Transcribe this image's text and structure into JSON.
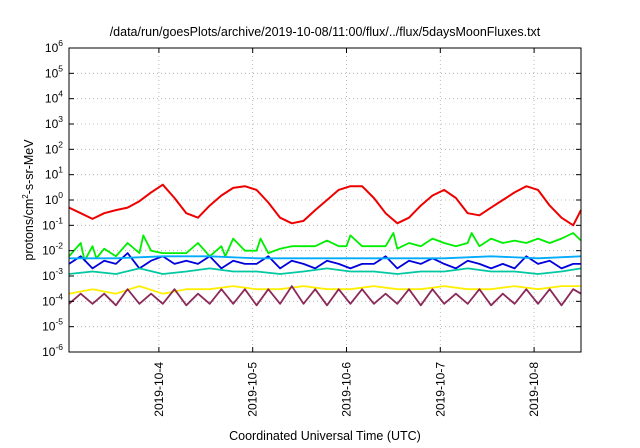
{
  "chart_data": {
    "type": "line",
    "title": "/data/run/goesPlots/archive/2019-10-08/11:00/flux/../flux/5daysMoonFluxes.txt",
    "xlabel": "Coordinated Universal Time (UTC)",
    "ylabel": {
      "prefix": "protons/cm",
      "sup": "2",
      "suffix": "-s-sr-MeV"
    },
    "y_scale": "log",
    "ylim": [
      1e-06,
      1000000.0
    ],
    "y_ticks": [
      {
        "value": 1e-06,
        "base": "10",
        "exp": "-6"
      },
      {
        "value": 1e-05,
        "base": "10",
        "exp": "-5"
      },
      {
        "value": 0.0001,
        "base": "10",
        "exp": "-4"
      },
      {
        "value": 0.001,
        "base": "10",
        "exp": "-3"
      },
      {
        "value": 0.01,
        "base": "10",
        "exp": "-2"
      },
      {
        "value": 0.1,
        "base": "10",
        "exp": "-1"
      },
      {
        "value": 1,
        "base": "10",
        "exp": "0"
      },
      {
        "value": 10,
        "base": "10",
        "exp": "1"
      },
      {
        "value": 100,
        "base": "10",
        "exp": "2"
      },
      {
        "value": 1000,
        "base": "10",
        "exp": "3"
      },
      {
        "value": 10000,
        "base": "10",
        "exp": "4"
      },
      {
        "value": 100000,
        "base": "10",
        "exp": "5"
      },
      {
        "value": 1000000,
        "base": "10",
        "exp": "6"
      }
    ],
    "xlim": [
      "2019-10-03T01:00",
      "2019-10-08T12:00"
    ],
    "x_ticks": [
      "2019-10-4",
      "2019-10-5",
      "2019-10-6",
      "2019-10-7",
      "2019-10-8"
    ],
    "grid": true,
    "legend": "none",
    "series": [
      {
        "color": "#ee0000",
        "x": [
          "2019-10-03T01:00",
          "2019-10-03T04:00",
          "2019-10-03T07:00",
          "2019-10-03T10:00",
          "2019-10-03T13:00",
          "2019-10-03T16:00",
          "2019-10-03T19:00",
          "2019-10-03T22:00",
          "2019-10-04T01:00",
          "2019-10-04T04:00",
          "2019-10-04T07:00",
          "2019-10-04T10:00",
          "2019-10-04T13:00",
          "2019-10-04T16:00",
          "2019-10-04T19:00",
          "2019-10-04T22:00",
          "2019-10-05T01:00",
          "2019-10-05T04:00",
          "2019-10-05T07:00",
          "2019-10-05T10:00",
          "2019-10-05T13:00",
          "2019-10-05T16:00",
          "2019-10-05T19:00",
          "2019-10-05T22:00",
          "2019-10-06T01:00",
          "2019-10-06T04:00",
          "2019-10-06T07:00",
          "2019-10-06T10:00",
          "2019-10-06T13:00",
          "2019-10-06T16:00",
          "2019-10-06T19:00",
          "2019-10-06T22:00",
          "2019-10-07T01:00",
          "2019-10-07T04:00",
          "2019-10-07T07:00",
          "2019-10-07T10:00",
          "2019-10-07T13:00",
          "2019-10-07T16:00",
          "2019-10-07T19:00",
          "2019-10-07T22:00",
          "2019-10-08T01:00",
          "2019-10-08T04:00",
          "2019-10-08T07:00",
          "2019-10-08T10:00",
          "2019-10-08T12:00"
        ],
        "y": [
          0.5,
          0.3,
          0.18,
          0.3,
          0.4,
          0.5,
          0.9,
          2,
          4,
          1.2,
          0.3,
          0.2,
          0.6,
          1.5,
          3,
          3.5,
          2.5,
          0.8,
          0.2,
          0.12,
          0.15,
          0.4,
          1,
          2.5,
          3.5,
          3.5,
          1.2,
          0.3,
          0.12,
          0.2,
          0.6,
          1.5,
          2.5,
          1.2,
          0.3,
          0.25,
          0.5,
          1,
          2,
          3.5,
          2.5,
          0.6,
          0.2,
          0.1,
          0.4
        ]
      },
      {
        "color": "#00ee00",
        "x": [
          "2019-10-03T01:00",
          "2019-10-03T04:00",
          "2019-10-03T05:00",
          "2019-10-03T07:00",
          "2019-10-03T08:00",
          "2019-10-03T10:00",
          "2019-10-03T13:00",
          "2019-10-03T16:00",
          "2019-10-03T19:00",
          "2019-10-03T20:00",
          "2019-10-03T22:00",
          "2019-10-04T01:00",
          "2019-10-04T04:00",
          "2019-10-04T07:00",
          "2019-10-04T10:00",
          "2019-10-04T13:00",
          "2019-10-04T16:00",
          "2019-10-04T17:00",
          "2019-10-04T19:00",
          "2019-10-04T22:00",
          "2019-10-05T01:00",
          "2019-10-05T02:00",
          "2019-10-05T04:00",
          "2019-10-05T07:00",
          "2019-10-05T10:00",
          "2019-10-05T13:00",
          "2019-10-05T16:00",
          "2019-10-05T19:00",
          "2019-10-05T22:00",
          "2019-10-06T00:00",
          "2019-10-06T01:00",
          "2019-10-06T04:00",
          "2019-10-06T07:00",
          "2019-10-06T10:00",
          "2019-10-06T12:00",
          "2019-10-06T13:00",
          "2019-10-06T16:00",
          "2019-10-06T19:00",
          "2019-10-06T22:00",
          "2019-10-07T01:00",
          "2019-10-07T04:00",
          "2019-10-07T07:00",
          "2019-10-07T08:00",
          "2019-10-07T10:00",
          "2019-10-07T13:00",
          "2019-10-07T16:00",
          "2019-10-07T19:00",
          "2019-10-07T22:00",
          "2019-10-08T01:00",
          "2019-10-08T04:00",
          "2019-10-08T07:00",
          "2019-10-08T10:00",
          "2019-10-08T12:00"
        ],
        "y": [
          0.006,
          0.02,
          0.004,
          0.015,
          0.005,
          0.012,
          0.006,
          0.02,
          0.008,
          0.04,
          0.01,
          0.008,
          0.008,
          0.008,
          0.02,
          0.006,
          0.015,
          0.006,
          0.03,
          0.01,
          0.01,
          0.03,
          0.008,
          0.012,
          0.015,
          0.015,
          0.015,
          0.025,
          0.015,
          0.015,
          0.04,
          0.015,
          0.015,
          0.015,
          0.05,
          0.012,
          0.02,
          0.015,
          0.03,
          0.02,
          0.015,
          0.02,
          0.05,
          0.015,
          0.03,
          0.02,
          0.025,
          0.02,
          0.03,
          0.02,
          0.03,
          0.05,
          0.025
        ]
      },
      {
        "color": "#0000dd",
        "x": [
          "2019-10-03T01:00",
          "2019-10-03T04:00",
          "2019-10-03T07:00",
          "2019-10-03T10:00",
          "2019-10-03T13:00",
          "2019-10-03T16:00",
          "2019-10-03T19:00",
          "2019-10-03T22:00",
          "2019-10-04T01:00",
          "2019-10-04T04:00",
          "2019-10-04T07:00",
          "2019-10-04T10:00",
          "2019-10-04T13:00",
          "2019-10-04T16:00",
          "2019-10-04T19:00",
          "2019-10-04T22:00",
          "2019-10-05T01:00",
          "2019-10-05T04:00",
          "2019-10-05T07:00",
          "2019-10-05T10:00",
          "2019-10-05T13:00",
          "2019-10-05T16:00",
          "2019-10-05T19:00",
          "2019-10-05T22:00",
          "2019-10-06T01:00",
          "2019-10-06T04:00",
          "2019-10-06T07:00",
          "2019-10-06T10:00",
          "2019-10-06T13:00",
          "2019-10-06T16:00",
          "2019-10-06T19:00",
          "2019-10-06T22:00",
          "2019-10-07T01:00",
          "2019-10-07T04:00",
          "2019-10-07T07:00",
          "2019-10-07T10:00",
          "2019-10-07T13:00",
          "2019-10-07T16:00",
          "2019-10-07T19:00",
          "2019-10-07T22:00",
          "2019-10-08T01:00",
          "2019-10-08T04:00",
          "2019-10-08T07:00",
          "2019-10-08T10:00",
          "2019-10-08T12:00"
        ],
        "y": [
          0.003,
          0.006,
          0.002,
          0.004,
          0.003,
          0.008,
          0.002,
          0.004,
          0.006,
          0.003,
          0.004,
          0.003,
          0.006,
          0.002,
          0.004,
          0.003,
          0.003,
          0.006,
          0.002,
          0.004,
          0.003,
          0.002,
          0.004,
          0.003,
          0.002,
          0.003,
          0.003,
          0.006,
          0.002,
          0.004,
          0.003,
          0.005,
          0.003,
          0.002,
          0.004,
          0.003,
          0.002,
          0.003,
          0.002,
          0.006,
          0.003,
          0.004,
          0.002,
          0.003,
          0.003
        ]
      },
      {
        "color": "#00aaff",
        "x": [
          "2019-10-03T01:00",
          "2019-10-03T13:00",
          "2019-10-04T01:00",
          "2019-10-04T13:00",
          "2019-10-05T01:00",
          "2019-10-05T13:00",
          "2019-10-06T01:00",
          "2019-10-06T13:00",
          "2019-10-07T01:00",
          "2019-10-07T13:00",
          "2019-10-08T01:00",
          "2019-10-08T12:00"
        ],
        "y": [
          0.005,
          0.005,
          0.006,
          0.006,
          0.005,
          0.005,
          0.005,
          0.005,
          0.005,
          0.006,
          0.005,
          0.006
        ]
      },
      {
        "color": "#00c8a0",
        "x": [
          "2019-10-03T01:00",
          "2019-10-03T07:00",
          "2019-10-03T13:00",
          "2019-10-03T19:00",
          "2019-10-04T01:00",
          "2019-10-04T07:00",
          "2019-10-04T13:00",
          "2019-10-04T19:00",
          "2019-10-05T01:00",
          "2019-10-05T07:00",
          "2019-10-05T13:00",
          "2019-10-05T19:00",
          "2019-10-06T01:00",
          "2019-10-06T07:00",
          "2019-10-06T13:00",
          "2019-10-06T19:00",
          "2019-10-07T01:00",
          "2019-10-07T07:00",
          "2019-10-07T13:00",
          "2019-10-07T19:00",
          "2019-10-08T01:00",
          "2019-10-08T07:00",
          "2019-10-08T12:00"
        ],
        "y": [
          0.0012,
          0.0015,
          0.0012,
          0.002,
          0.0012,
          0.0015,
          0.002,
          0.0015,
          0.0015,
          0.0012,
          0.0015,
          0.002,
          0.0015,
          0.0015,
          0.0012,
          0.0015,
          0.0015,
          0.002,
          0.0015,
          0.0015,
          0.0012,
          0.0015,
          0.002
        ]
      },
      {
        "color": "#ffee00",
        "x": [
          "2019-10-03T01:00",
          "2019-10-03T07:00",
          "2019-10-03T13:00",
          "2019-10-03T19:00",
          "2019-10-04T01:00",
          "2019-10-04T07:00",
          "2019-10-04T13:00",
          "2019-10-04T19:00",
          "2019-10-05T01:00",
          "2019-10-05T07:00",
          "2019-10-05T13:00",
          "2019-10-05T19:00",
          "2019-10-06T01:00",
          "2019-10-06T07:00",
          "2019-10-06T13:00",
          "2019-10-06T19:00",
          "2019-10-07T01:00",
          "2019-10-07T07:00",
          "2019-10-07T13:00",
          "2019-10-07T19:00",
          "2019-10-08T01:00",
          "2019-10-08T07:00",
          "2019-10-08T12:00"
        ],
        "y": [
          0.0002,
          0.0003,
          0.0002,
          0.0004,
          0.0002,
          0.0003,
          0.0003,
          0.0004,
          0.0003,
          0.0003,
          0.0004,
          0.0003,
          0.0003,
          0.0004,
          0.0003,
          0.0003,
          0.0004,
          0.0003,
          0.0003,
          0.0004,
          0.0003,
          0.0004,
          0.0004
        ]
      },
      {
        "color": "#8b2a5a",
        "x": [
          "2019-10-03T01:00",
          "2019-10-03T04:00",
          "2019-10-03T07:00",
          "2019-10-03T10:00",
          "2019-10-03T13:00",
          "2019-10-03T16:00",
          "2019-10-03T19:00",
          "2019-10-03T22:00",
          "2019-10-04T01:00",
          "2019-10-04T04:00",
          "2019-10-04T07:00",
          "2019-10-04T10:00",
          "2019-10-04T13:00",
          "2019-10-04T16:00",
          "2019-10-04T19:00",
          "2019-10-04T22:00",
          "2019-10-05T01:00",
          "2019-10-05T04:00",
          "2019-10-05T07:00",
          "2019-10-05T10:00",
          "2019-10-05T13:00",
          "2019-10-05T16:00",
          "2019-10-05T19:00",
          "2019-10-05T22:00",
          "2019-10-06T01:00",
          "2019-10-06T04:00",
          "2019-10-06T07:00",
          "2019-10-06T10:00",
          "2019-10-06T13:00",
          "2019-10-06T16:00",
          "2019-10-06T19:00",
          "2019-10-06T22:00",
          "2019-10-07T01:00",
          "2019-10-07T04:00",
          "2019-10-07T07:00",
          "2019-10-07T10:00",
          "2019-10-07T13:00",
          "2019-10-07T16:00",
          "2019-10-07T19:00",
          "2019-10-07T22:00",
          "2019-10-08T01:00",
          "2019-10-08T04:00",
          "2019-10-08T07:00",
          "2019-10-08T10:00",
          "2019-10-08T12:00"
        ],
        "y": [
          8e-05,
          0.0002,
          8e-05,
          0.0002,
          7e-05,
          0.0003,
          8e-05,
          0.0002,
          8e-05,
          0.0003,
          7e-05,
          0.0002,
          8e-05,
          0.0003,
          8e-05,
          0.0003,
          7e-05,
          0.0003,
          8e-05,
          0.0004,
          8e-05,
          0.0003,
          7e-05,
          0.0003,
          8e-05,
          0.0003,
          8e-05,
          0.0002,
          8e-05,
          0.0003,
          7e-05,
          0.0003,
          8e-05,
          0.0002,
          8e-05,
          0.0003,
          7e-05,
          0.0002,
          8e-05,
          0.0003,
          8e-05,
          0.0003,
          7e-05,
          0.0003,
          0.0002
        ]
      }
    ]
  }
}
